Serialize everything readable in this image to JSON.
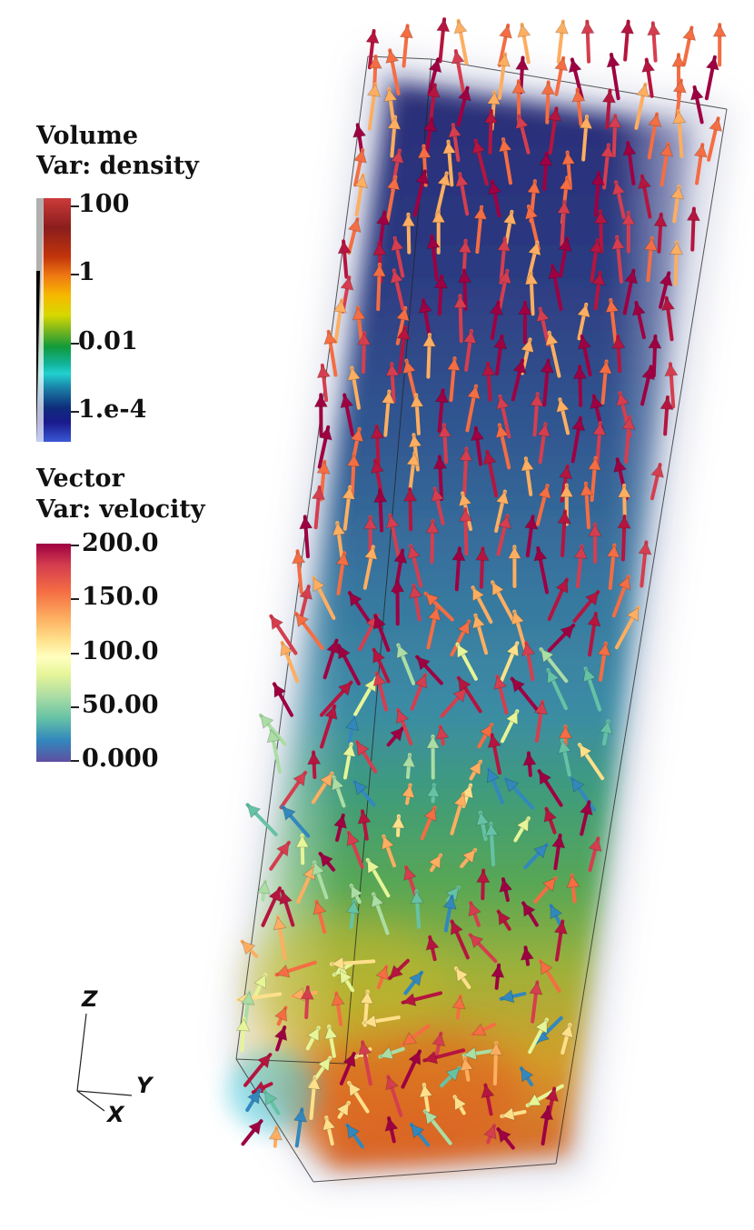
{
  "legends": {
    "volume": {
      "title_line1": "Volume",
      "title_line2": "Var: density",
      "ticks": [
        "100",
        "1",
        "0.01",
        "1.e-4"
      ],
      "scale": "log",
      "range": [
        0.0001,
        100
      ]
    },
    "vector": {
      "title_line1": "Vector",
      "title_line2": "Var: velocity",
      "ticks": [
        "200.0",
        "150.0",
        "100.0",
        "50.00",
        "0.000"
      ],
      "scale": "linear",
      "range": [
        0,
        200
      ]
    }
  },
  "axes": {
    "z": "Z",
    "y": "Y",
    "x": "X"
  },
  "colors": {
    "velocity_high": "#9e0142",
    "velocity_mid": "#fdae61",
    "velocity_low": "#5e4fa2",
    "density_low": "#0e2c7a",
    "density_high": "#c2340c"
  }
}
